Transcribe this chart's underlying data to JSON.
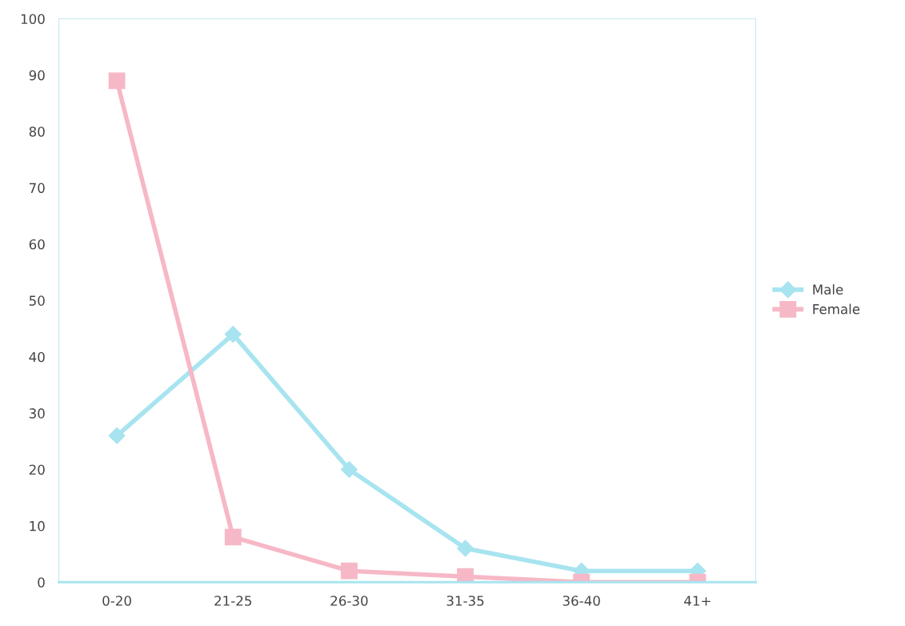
{
  "chart_data": {
    "type": "line",
    "categories": [
      "0-20",
      "21-25",
      "26-30",
      "31-35",
      "36-40",
      "41+"
    ],
    "series": [
      {
        "name": "Male",
        "color": "#a8e4f0",
        "marker": "diamond",
        "values": [
          26,
          44,
          20,
          6,
          2,
          2
        ]
      },
      {
        "name": "Female",
        "color": "#f6b8c6",
        "marker": "square",
        "values": [
          89,
          8,
          2,
          1,
          0,
          0
        ]
      }
    ],
    "ylim": [
      0,
      100
    ],
    "yticks": [
      0,
      10,
      20,
      30,
      40,
      50,
      60,
      70,
      80,
      90,
      100
    ],
    "grid": false,
    "legend": "right",
    "line_style": "solid"
  }
}
